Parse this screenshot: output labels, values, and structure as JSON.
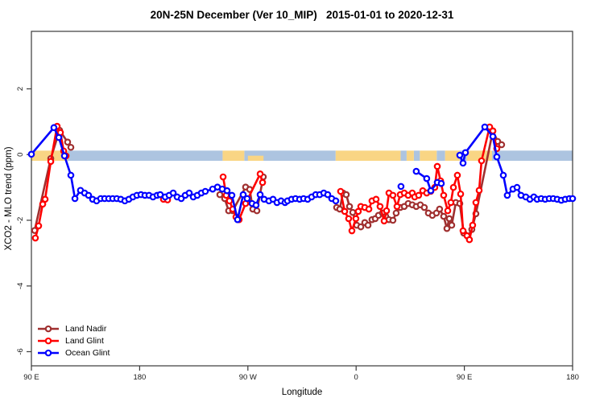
{
  "title": "20N-25N December (Ver 10_MIP)   2015-01-01 to 2020-12-31",
  "colors": {
    "background": "#FFFFFF",
    "axis": "#3A3A3A",
    "tick_text": "#1A1A1A",
    "band_ocean": "#ADC4E0",
    "band_land": "#F9D584"
  },
  "chart_data": {
    "type": "line",
    "title": "20N-25N December (Ver 10_MIP)   2015-01-01 to 2020-12-31",
    "xlabel": "Longitude",
    "ylabel": "XCO2 - MLO trend (ppm)",
    "grid": "off",
    "legend_position": "bottom-left",
    "x_axis": {
      "note": "axis spans 450 deg of longitude starting at 90E heading east and wrapping: 90E-180-90W-0-90E-180; positions below are degrees east of 90E",
      "range": [
        0,
        450
      ],
      "ticks": [
        {
          "pos": 0,
          "label": "90 E"
        },
        {
          "pos": 90,
          "label": "180"
        },
        {
          "pos": 180,
          "label": "90 W"
        },
        {
          "pos": 270,
          "label": "0"
        },
        {
          "pos": 360,
          "label": "90 E"
        },
        {
          "pos": 450,
          "label": "180"
        }
      ]
    },
    "y_axis": {
      "range": [
        -6.43,
        3.75
      ],
      "ticks": [
        {
          "pos": 2,
          "label": "2"
        },
        {
          "pos": 0,
          "label": "0"
        },
        {
          "pos": -2,
          "label": "-2"
        },
        {
          "pos": -4,
          "label": "-4"
        },
        {
          "pos": -6,
          "label": "-6"
        }
      ]
    },
    "zero_band": {
      "description": "surface-type strip drawn across y=0: ocean (blue) vs land (orange)",
      "value_top": 0.12,
      "value_bottom": -0.19,
      "segments": [
        {
          "from": 0,
          "to": 30,
          "type": "land"
        },
        {
          "from": 30,
          "to": 159,
          "type": "ocean"
        },
        {
          "from": 159,
          "to": 177,
          "type": "land"
        },
        {
          "from": 177,
          "to": 253,
          "type": "ocean"
        },
        {
          "from": 180,
          "to": 193,
          "type": "land",
          "half": true
        },
        {
          "from": 253,
          "to": 307,
          "type": "land"
        },
        {
          "from": 307,
          "to": 312,
          "type": "ocean"
        },
        {
          "from": 312,
          "to": 318,
          "type": "land"
        },
        {
          "from": 318,
          "to": 323,
          "type": "ocean"
        },
        {
          "from": 323,
          "to": 337,
          "type": "land"
        },
        {
          "from": 337,
          "to": 344,
          "type": "ocean"
        },
        {
          "from": 344,
          "to": 356,
          "type": "land"
        },
        {
          "from": 356,
          "to": 362,
          "type": "ocean"
        },
        {
          "from": 362,
          "to": 383,
          "type": "land"
        },
        {
          "from": 383,
          "to": 450,
          "type": "ocean"
        }
      ]
    },
    "series": [
      {
        "name": "Land Nadir",
        "color": "#A03030",
        "marker": "open-circle",
        "segments": [
          [
            [
              2.7,
              -2.31
            ],
            [
              16.1,
              -0.12
            ],
            [
              23.4,
              0.74
            ],
            [
              30.1,
              0.38
            ],
            [
              32.8,
              0.22
            ]
          ],
          [
            [
              156.7,
              -1.22
            ],
            [
              160.7,
              -1.34
            ],
            [
              164,
              -1.71
            ],
            [
              167.4,
              -1.71
            ],
            [
              178.1,
              -0.99
            ],
            [
              181.5,
              -1.06
            ],
            [
              184.1,
              -1.66
            ],
            [
              187.5,
              -1.71
            ],
            [
              192.8,
              -0.68
            ]
          ],
          [
            [
              253.8,
              -1.61
            ],
            [
              256.4,
              -1.66
            ],
            [
              259.1,
              -1.17
            ],
            [
              261.8,
              -1.22
            ],
            [
              264.5,
              -1.58
            ],
            [
              267.2,
              -1.76
            ],
            [
              270.5,
              -2.15
            ],
            [
              273.9,
              -2.2
            ],
            [
              277.2,
              -2.07
            ],
            [
              279.9,
              -2.15
            ],
            [
              283.2,
              -1.98
            ],
            [
              285.9,
              -1.95
            ],
            [
              288.6,
              -1.85
            ],
            [
              291.9,
              -1.78
            ],
            [
              294.6,
              -1.88
            ],
            [
              297.3,
              -1.98
            ],
            [
              300.6,
              -2.0
            ],
            [
              303.3,
              -1.78
            ],
            [
              306.7,
              -1.61
            ],
            [
              310,
              -1.58
            ],
            [
              313.3,
              -1.49
            ],
            [
              316.7,
              -1.53
            ],
            [
              320,
              -1.58
            ],
            [
              323.4,
              -1.53
            ],
            [
              326.7,
              -1.61
            ],
            [
              330.1,
              -1.78
            ],
            [
              333.4,
              -1.85
            ],
            [
              336.8,
              -1.78
            ],
            [
              339.4,
              -1.66
            ],
            [
              342.8,
              -1.88
            ],
            [
              345.5,
              -2.25
            ],
            [
              347.5,
              -1.95
            ],
            [
              349.5,
              -2.15
            ],
            [
              352.9,
              -1.46
            ],
            [
              356.2,
              -1.49
            ],
            [
              359.5,
              -2.39
            ],
            [
              362.9,
              -2.49
            ],
            [
              366.2,
              -2.28
            ],
            [
              369.6,
              -1.8
            ],
            [
              383.7,
              0.72
            ],
            [
              387.7,
              0.4
            ],
            [
              391,
              0.3
            ]
          ]
        ]
      },
      {
        "name": "Land Glint",
        "color": "#FF0000",
        "marker": "open-circle",
        "segments": [
          [
            [
              3.3,
              -2.54
            ],
            [
              6,
              -2.17
            ],
            [
              9.4,
              -1.51
            ],
            [
              11.4,
              -1.36
            ],
            [
              16.1,
              -0.21
            ],
            [
              21.4,
              0.86
            ],
            [
              24.1,
              0.67
            ],
            [
              26.8,
              0.11
            ],
            [
              28.8,
              -0.04
            ]
          ],
          [
            [
              109.8,
              -1.36
            ],
            [
              113.2,
              -1.38
            ]
          ],
          [
            [
              159.4,
              -0.68
            ],
            [
              162,
              -1.24
            ],
            [
              164.7,
              -1.41
            ],
            [
              167.4,
              -1.66
            ],
            [
              170.1,
              -1.9
            ],
            [
              172.7,
              -1.98
            ],
            [
              178.1,
              -1.49
            ],
            [
              190.2,
              -0.59
            ],
            [
              192.2,
              -0.85
            ]
          ],
          [
            [
              257.1,
              -1.12
            ],
            [
              260.5,
              -1.73
            ],
            [
              263.8,
              -1.95
            ],
            [
              266.5,
              -2.32
            ],
            [
              269.8,
              -1.95
            ],
            [
              271.8,
              -1.73
            ],
            [
              273.9,
              -1.58
            ],
            [
              277.2,
              -1.61
            ],
            [
              280.6,
              -1.66
            ],
            [
              283.2,
              -1.41
            ],
            [
              286.6,
              -1.36
            ],
            [
              289.9,
              -1.58
            ],
            [
              293.3,
              -2.02
            ],
            [
              295.3,
              -1.71
            ],
            [
              297.3,
              -1.17
            ],
            [
              300.6,
              -1.24
            ],
            [
              304,
              -1.58
            ],
            [
              306.7,
              -1.22
            ],
            [
              310,
              -1.17
            ],
            [
              313.3,
              -1.24
            ],
            [
              316.7,
              -1.17
            ],
            [
              318.7,
              -1.29
            ],
            [
              322,
              -1.24
            ],
            [
              325.4,
              -1.1
            ],
            [
              328.7,
              -1.17
            ],
            [
              332.1,
              -1.12
            ],
            [
              335.4,
              -1.0
            ],
            [
              337.5,
              -0.36
            ],
            [
              340.2,
              -0.8
            ],
            [
              342.8,
              -1.24
            ],
            [
              346.2,
              -1.71
            ],
            [
              348.8,
              -1.46
            ],
            [
              350.9,
              -1.0
            ],
            [
              354.2,
              -0.63
            ],
            [
              356.9,
              -1.2
            ],
            [
              358.9,
              -2.32
            ],
            [
              362.2,
              -2.47
            ],
            [
              364.2,
              -2.59
            ],
            [
              366.9,
              -2.15
            ],
            [
              369.6,
              -1.46
            ],
            [
              372.3,
              -1.09
            ],
            [
              374.3,
              -0.19
            ],
            [
              381,
              0.84
            ],
            [
              383.7,
              0.72
            ],
            [
              387,
              0.18
            ]
          ]
        ]
      },
      {
        "name": "Ocean Glint",
        "color": "#0000FF",
        "marker": "open-circle",
        "segments": [
          [
            [
              0,
              0.01
            ],
            [
              18.7,
              0.82
            ],
            [
              22.8,
              0.52
            ],
            [
              27.5,
              -0.04
            ],
            [
              32.8,
              -0.63
            ],
            [
              36.2,
              -1.34
            ],
            [
              40.8,
              -1.09
            ],
            [
              44.2,
              -1.17
            ],
            [
              47.5,
              -1.24
            ],
            [
              50.9,
              -1.36
            ],
            [
              54.2,
              -1.41
            ],
            [
              57.6,
              -1.34
            ],
            [
              60.9,
              -1.34
            ],
            [
              64.3,
              -1.34
            ],
            [
              67.6,
              -1.34
            ],
            [
              71,
              -1.34
            ],
            [
              74.3,
              -1.36
            ],
            [
              77.7,
              -1.41
            ],
            [
              81,
              -1.36
            ],
            [
              84.4,
              -1.29
            ],
            [
              87.7,
              -1.24
            ],
            [
              91.1,
              -1.22
            ],
            [
              94.4,
              -1.24
            ],
            [
              97.8,
              -1.24
            ],
            [
              101.1,
              -1.29
            ],
            [
              104.5,
              -1.24
            ],
            [
              107.1,
              -1.22
            ],
            [
              111.2,
              -1.29
            ],
            [
              114.5,
              -1.24
            ],
            [
              117.9,
              -1.17
            ],
            [
              121.2,
              -1.29
            ],
            [
              124.6,
              -1.34
            ],
            [
              127.9,
              -1.24
            ],
            [
              131.2,
              -1.17
            ],
            [
              134.6,
              -1.29
            ],
            [
              137.9,
              -1.24
            ],
            [
              141.3,
              -1.17
            ],
            [
              144.6,
              -1.12
            ],
            [
              150.7,
              -1.05
            ],
            [
              154.7,
              -0.99
            ],
            [
              158.7,
              -1.05
            ],
            [
              162.7,
              -1.1
            ],
            [
              166.7,
              -1.24
            ],
            [
              171.4,
              -1.98
            ],
            [
              176.1,
              -1.22
            ],
            [
              179.4,
              -1.34
            ],
            [
              183.5,
              -1.49
            ],
            [
              186.8,
              -1.54
            ],
            [
              190.2,
              -1.22
            ],
            [
              193.5,
              -1.36
            ],
            [
              197.5,
              -1.41
            ],
            [
              200.9,
              -1.36
            ],
            [
              204.2,
              -1.46
            ],
            [
              207.6,
              -1.41
            ],
            [
              210.9,
              -1.46
            ],
            [
              212.9,
              -1.41
            ],
            [
              216.3,
              -1.36
            ],
            [
              219.6,
              -1.34
            ],
            [
              223,
              -1.36
            ],
            [
              226.3,
              -1.34
            ],
            [
              229.7,
              -1.36
            ],
            [
              233,
              -1.29
            ],
            [
              236.4,
              -1.22
            ],
            [
              239.7,
              -1.22
            ],
            [
              243.1,
              -1.17
            ],
            [
              246.4,
              -1.22
            ],
            [
              249.7,
              -1.34
            ],
            [
              253.1,
              -1.41
            ]
          ],
          [
            [
              307.3,
              -0.97
            ]
          ],
          [
            [
              320,
              -0.51
            ],
            [
              328.7,
              -0.73
            ],
            [
              332.1,
              -1.1
            ],
            [
              337.5,
              -0.85
            ],
            [
              340.8,
              -0.88
            ]
          ],
          [
            [
              356.2,
              -0.02
            ],
            [
              358.9,
              -0.26
            ],
            [
              360.9,
              0.06
            ],
            [
              377,
              0.84
            ],
            [
              383.7,
              0.55
            ],
            [
              387,
              -0.07
            ],
            [
              392.4,
              -0.63
            ],
            [
              395.7,
              -1.24
            ],
            [
              400.4,
              -1.05
            ],
            [
              403.8,
              -1.0
            ],
            [
              407.1,
              -1.24
            ],
            [
              411.1,
              -1.29
            ],
            [
              414.5,
              -1.36
            ],
            [
              417.8,
              -1.29
            ],
            [
              420.5,
              -1.36
            ],
            [
              423.9,
              -1.34
            ],
            [
              427.2,
              -1.36
            ],
            [
              430.6,
              -1.34
            ],
            [
              433.9,
              -1.34
            ],
            [
              437.2,
              -1.36
            ],
            [
              440.6,
              -1.39
            ],
            [
              443.9,
              -1.36
            ],
            [
              447.3,
              -1.34
            ],
            [
              450,
              -1.34
            ]
          ]
        ]
      }
    ]
  }
}
